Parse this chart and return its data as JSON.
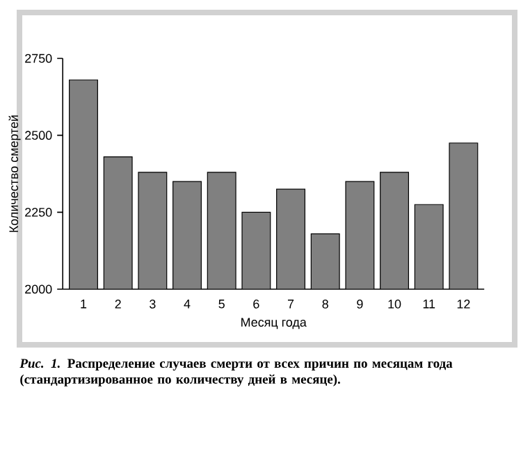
{
  "chart_data": {
    "type": "bar",
    "xlabel": "Месяц года",
    "ylabel": "Количество смертей",
    "categories": [
      "1",
      "2",
      "3",
      "4",
      "5",
      "6",
      "7",
      "8",
      "9",
      "10",
      "11",
      "12"
    ],
    "values": [
      2680,
      2430,
      2380,
      2350,
      2380,
      2250,
      2325,
      2180,
      2350,
      2380,
      2275,
      2475
    ],
    "color": "#808080",
    "ylim": [
      2000,
      2750
    ],
    "yticks": [
      2000,
      2250,
      2500,
      2750
    ],
    "annotations": [
      "*Рис. 1.* Распределение случаев смерти от всех причин по месяцам года (стандартизированное по количеству дней в месяце)."
    ]
  }
}
